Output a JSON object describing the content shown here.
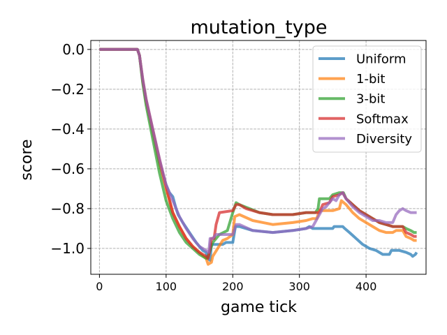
{
  "chart_data": {
    "type": "line",
    "title": "mutation_type",
    "xlabel": "game tick",
    "ylabel": "score",
    "xlim": [
      -13,
      490
    ],
    "ylim": [
      -1.13,
      0.045
    ],
    "xticks": [
      0,
      100,
      200,
      300,
      400
    ],
    "xtick_labels": [
      "0",
      "100",
      "200",
      "300",
      "400"
    ],
    "yticks": [
      0.0,
      -0.2,
      -0.4,
      -0.6,
      -0.8,
      -1.0
    ],
    "ytick_labels": [
      "0.0",
      "−0.2",
      "−0.4",
      "−0.6",
      "−0.8",
      "−1.0"
    ],
    "grid": true,
    "legend_position": "top-right",
    "series": [
      {
        "name": "Uniform",
        "color": "#1f77b4",
        "points": [
          [
            0,
            0
          ],
          [
            57,
            0
          ],
          [
            60,
            -0.03
          ],
          [
            65,
            -0.16
          ],
          [
            70,
            -0.26
          ],
          [
            80,
            -0.41
          ],
          [
            90,
            -0.57
          ],
          [
            100,
            -0.68
          ],
          [
            105,
            -0.72
          ],
          [
            110,
            -0.74
          ],
          [
            115,
            -0.8
          ],
          [
            118,
            -0.83
          ],
          [
            125,
            -0.87
          ],
          [
            135,
            -0.92
          ],
          [
            145,
            -0.97
          ],
          [
            155,
            -1.01
          ],
          [
            160,
            -1.02
          ],
          [
            162,
            -1.05
          ],
          [
            166,
            -1.06
          ],
          [
            168,
            -0.98
          ],
          [
            185,
            -0.98
          ],
          [
            190,
            -0.97
          ],
          [
            200,
            -0.97
          ],
          [
            204,
            -0.89
          ],
          [
            210,
            -0.89
          ],
          [
            230,
            -0.91
          ],
          [
            260,
            -0.92
          ],
          [
            290,
            -0.91
          ],
          [
            310,
            -0.9
          ],
          [
            315,
            -0.89
          ],
          [
            320,
            -0.9
          ],
          [
            350,
            -0.9
          ],
          [
            352,
            -0.89
          ],
          [
            365,
            -0.89
          ],
          [
            368,
            -0.9
          ],
          [
            375,
            -0.92
          ],
          [
            385,
            -0.95
          ],
          [
            395,
            -0.98
          ],
          [
            405,
            -1.0
          ],
          [
            415,
            -1.01
          ],
          [
            425,
            -1.03
          ],
          [
            435,
            -1.03
          ],
          [
            438,
            -1.01
          ],
          [
            450,
            -1.01
          ],
          [
            460,
            -1.02
          ],
          [
            467,
            -1.03
          ],
          [
            470,
            -1.04
          ],
          [
            474,
            -1.03
          ],
          [
            476,
            -1.02
          ]
        ]
      },
      {
        "name": "1-bit",
        "color": "#ff7f0e",
        "points": [
          [
            0,
            0
          ],
          [
            57,
            0
          ],
          [
            60,
            -0.03
          ],
          [
            65,
            -0.16
          ],
          [
            70,
            -0.26
          ],
          [
            80,
            -0.41
          ],
          [
            90,
            -0.57
          ],
          [
            100,
            -0.7
          ],
          [
            105,
            -0.76
          ],
          [
            110,
            -0.82
          ],
          [
            120,
            -0.89
          ],
          [
            130,
            -0.95
          ],
          [
            140,
            -0.99
          ],
          [
            150,
            -1.02
          ],
          [
            160,
            -1.05
          ],
          [
            163,
            -1.08
          ],
          [
            168,
            -1.07
          ],
          [
            170,
            -1.04
          ],
          [
            185,
            -0.96
          ],
          [
            192,
            -0.95
          ],
          [
            200,
            -0.93
          ],
          [
            203,
            -0.84
          ],
          [
            210,
            -0.83
          ],
          [
            230,
            -0.86
          ],
          [
            260,
            -0.88
          ],
          [
            290,
            -0.87
          ],
          [
            310,
            -0.86
          ],
          [
            320,
            -0.85
          ],
          [
            326,
            -0.85
          ],
          [
            330,
            -0.81
          ],
          [
            350,
            -0.81
          ],
          [
            360,
            -0.8
          ],
          [
            363,
            -0.76
          ],
          [
            370,
            -0.78
          ],
          [
            380,
            -0.82
          ],
          [
            390,
            -0.85
          ],
          [
            400,
            -0.87
          ],
          [
            410,
            -0.89
          ],
          [
            420,
            -0.91
          ],
          [
            430,
            -0.92
          ],
          [
            440,
            -0.92
          ],
          [
            445,
            -0.91
          ],
          [
            455,
            -0.91
          ],
          [
            460,
            -0.94
          ],
          [
            467,
            -0.95
          ],
          [
            472,
            -0.96
          ],
          [
            476,
            -0.96
          ]
        ]
      },
      {
        "name": "3-bit",
        "color": "#2ca02c",
        "points": [
          [
            0,
            0
          ],
          [
            57,
            0
          ],
          [
            60,
            -0.03
          ],
          [
            65,
            -0.17
          ],
          [
            70,
            -0.28
          ],
          [
            80,
            -0.45
          ],
          [
            90,
            -0.62
          ],
          [
            100,
            -0.76
          ],
          [
            110,
            -0.85
          ],
          [
            120,
            -0.92
          ],
          [
            130,
            -0.97
          ],
          [
            140,
            -1.0
          ],
          [
            150,
            -1.03
          ],
          [
            160,
            -1.05
          ],
          [
            163,
            -1.04
          ],
          [
            166,
            -1.01
          ],
          [
            170,
            -0.97
          ],
          [
            180,
            -0.93
          ],
          [
            192,
            -0.91
          ],
          [
            200,
            -0.82
          ],
          [
            205,
            -0.77
          ],
          [
            210,
            -0.78
          ],
          [
            225,
            -0.8
          ],
          [
            240,
            -0.82
          ],
          [
            260,
            -0.83
          ],
          [
            290,
            -0.83
          ],
          [
            310,
            -0.82
          ],
          [
            324,
            -0.82
          ],
          [
            328,
            -0.8
          ],
          [
            330,
            -0.75
          ],
          [
            345,
            -0.75
          ],
          [
            350,
            -0.73
          ],
          [
            360,
            -0.72
          ],
          [
            366,
            -0.72
          ],
          [
            370,
            -0.75
          ],
          [
            380,
            -0.78
          ],
          [
            390,
            -0.81
          ],
          [
            400,
            -0.83
          ],
          [
            410,
            -0.85
          ],
          [
            420,
            -0.87
          ],
          [
            430,
            -0.88
          ],
          [
            440,
            -0.89
          ],
          [
            455,
            -0.89
          ],
          [
            460,
            -0.9
          ],
          [
            467,
            -0.91
          ],
          [
            472,
            -0.92
          ],
          [
            476,
            -0.92
          ]
        ]
      },
      {
        "name": "Softmax",
        "color": "#d62728",
        "points": [
          [
            0,
            0
          ],
          [
            57,
            0
          ],
          [
            60,
            -0.03
          ],
          [
            65,
            -0.15
          ],
          [
            70,
            -0.25
          ],
          [
            80,
            -0.4
          ],
          [
            90,
            -0.55
          ],
          [
            100,
            -0.69
          ],
          [
            110,
            -0.82
          ],
          [
            120,
            -0.89
          ],
          [
            130,
            -0.95
          ],
          [
            140,
            -0.99
          ],
          [
            150,
            -1.02
          ],
          [
            160,
            -1.04
          ],
          [
            163,
            -1.05
          ],
          [
            166,
            -1.0
          ],
          [
            168,
            -0.95
          ],
          [
            172,
            -0.95
          ],
          [
            175,
            -0.88
          ],
          [
            180,
            -0.82
          ],
          [
            200,
            -0.81
          ],
          [
            205,
            -0.78
          ],
          [
            210,
            -0.78
          ],
          [
            220,
            -0.8
          ],
          [
            240,
            -0.82
          ],
          [
            260,
            -0.83
          ],
          [
            290,
            -0.83
          ],
          [
            310,
            -0.82
          ],
          [
            320,
            -0.82
          ],
          [
            330,
            -0.82
          ],
          [
            335,
            -0.78
          ],
          [
            345,
            -0.77
          ],
          [
            350,
            -0.74
          ],
          [
            360,
            -0.73
          ],
          [
            365,
            -0.72
          ],
          [
            370,
            -0.75
          ],
          [
            380,
            -0.78
          ],
          [
            390,
            -0.81
          ],
          [
            400,
            -0.83
          ],
          [
            410,
            -0.85
          ],
          [
            420,
            -0.87
          ],
          [
            430,
            -0.88
          ],
          [
            440,
            -0.89
          ],
          [
            455,
            -0.89
          ],
          [
            460,
            -0.92
          ],
          [
            467,
            -0.93
          ],
          [
            472,
            -0.94
          ],
          [
            476,
            -0.94
          ]
        ]
      },
      {
        "name": "Diversity",
        "color": "#9467bd",
        "points": [
          [
            0,
            0
          ],
          [
            57,
            0
          ],
          [
            60,
            -0.03
          ],
          [
            65,
            -0.15
          ],
          [
            70,
            -0.25
          ],
          [
            80,
            -0.4
          ],
          [
            90,
            -0.55
          ],
          [
            100,
            -0.68
          ],
          [
            110,
            -0.76
          ],
          [
            115,
            -0.8
          ],
          [
            120,
            -0.84
          ],
          [
            130,
            -0.9
          ],
          [
            140,
            -0.95
          ],
          [
            150,
            -0.99
          ],
          [
            160,
            -1.01
          ],
          [
            164,
            -1.02
          ],
          [
            166,
            -0.95
          ],
          [
            170,
            -0.95
          ],
          [
            175,
            -0.93
          ],
          [
            200,
            -0.93
          ],
          [
            205,
            -0.88
          ],
          [
            210,
            -0.88
          ],
          [
            230,
            -0.91
          ],
          [
            260,
            -0.92
          ],
          [
            290,
            -0.91
          ],
          [
            310,
            -0.9
          ],
          [
            320,
            -0.89
          ],
          [
            330,
            -0.83
          ],
          [
            335,
            -0.8
          ],
          [
            340,
            -0.79
          ],
          [
            345,
            -0.77
          ],
          [
            350,
            -0.75
          ],
          [
            355,
            -0.76
          ],
          [
            360,
            -0.73
          ],
          [
            365,
            -0.72
          ],
          [
            370,
            -0.75
          ],
          [
            380,
            -0.79
          ],
          [
            390,
            -0.82
          ],
          [
            400,
            -0.84
          ],
          [
            410,
            -0.86
          ],
          [
            420,
            -0.86
          ],
          [
            430,
            -0.87
          ],
          [
            440,
            -0.87
          ],
          [
            445,
            -0.83
          ],
          [
            450,
            -0.81
          ],
          [
            455,
            -0.8
          ],
          [
            460,
            -0.81
          ],
          [
            467,
            -0.82
          ],
          [
            472,
            -0.82
          ],
          [
            476,
            -0.82
          ]
        ]
      }
    ]
  }
}
